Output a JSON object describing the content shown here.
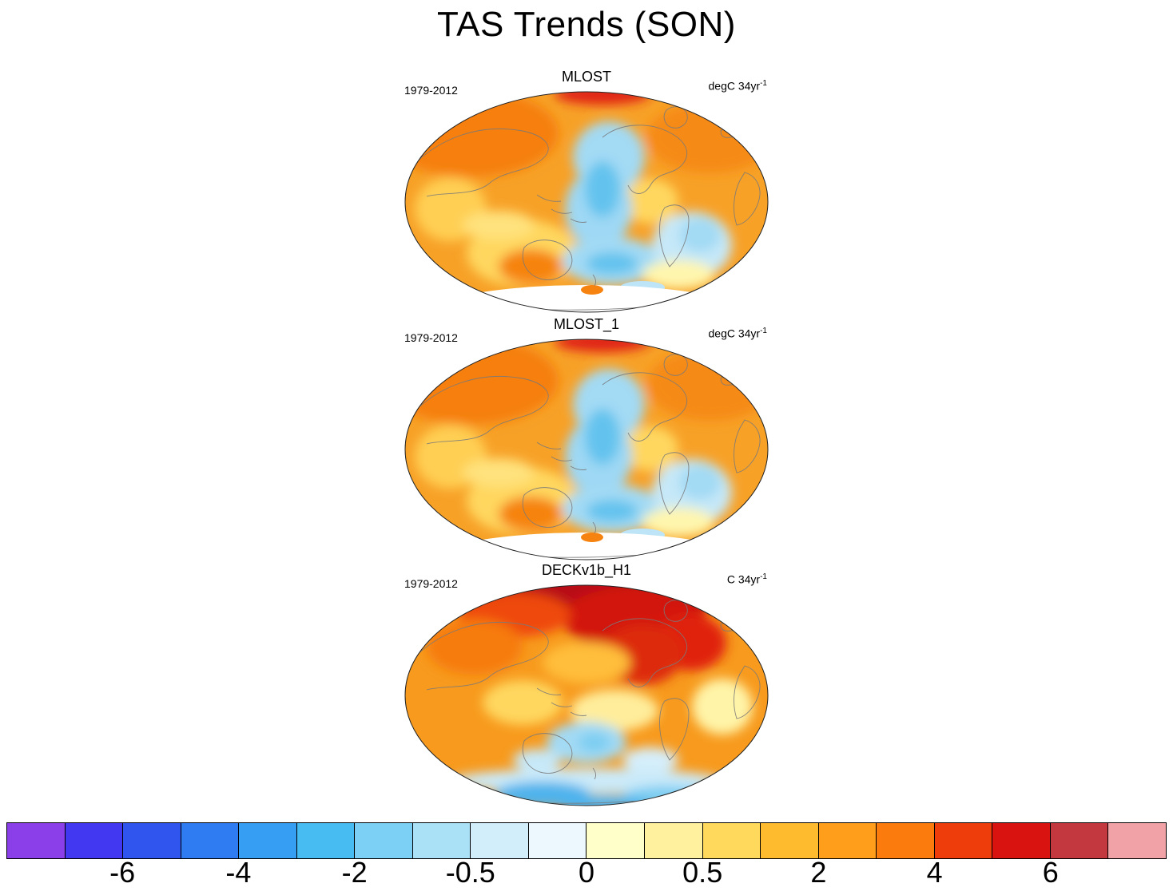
{
  "title": "TAS Trends (SON)",
  "panels": [
    {
      "title": "MLOST",
      "period": "1979-2012",
      "unit": "degC 34yr",
      "unit_exp": "-1"
    },
    {
      "title": "MLOST_1",
      "period": "1979-2012",
      "unit": "degC 34yr",
      "unit_exp": "-1"
    },
    {
      "title": "DECKv1b_H1",
      "period": "1979-2012",
      "unit": "C 34yr",
      "unit_exp": "-1"
    }
  ],
  "colorbar": {
    "tick_labels": [
      "-6",
      "-4",
      "-2",
      "-0.5",
      "0",
      "0.5",
      "2",
      "4",
      "6"
    ],
    "segments": [
      "#8B3FE8",
      "#4338F2",
      "#2F55EE",
      "#2F7BF2",
      "#379FF3",
      "#47BCF3",
      "#7CD0F5",
      "#ABE1F7",
      "#D3EEFB",
      "#ECF8FD",
      "#FFFFC9",
      "#FFF19E",
      "#FFD95C",
      "#FFBB2E",
      "#FF9E1B",
      "#FB7B0D",
      "#EE3D0B",
      "#D81310",
      "#C2383E",
      "#F1A2A6"
    ]
  },
  "chart_data": {
    "type": "heatmap",
    "title": "TAS Trends (SON)",
    "maps": [
      {
        "name": "MLOST",
        "period": "1979-2012",
        "units": "degC 34yr^-1",
        "projection": "Robinson-style global map",
        "description": "Mostly warm (orange) surface air temperature trends globally; cooling (light blue) wedge in the eastern tropical Pacific extending along the west coast of the Americas and into the Southern Ocean; pale/near-zero trends in the South Atlantic; Antarctica masked white with a small warm patch."
      },
      {
        "name": "MLOST_1",
        "period": "1979-2012",
        "units": "degC 34yr^-1",
        "projection": "Robinson-style global map",
        "description": "Pattern essentially identical to MLOST: broad warming with eastern Pacific cooling band and masked (white) Antarctica."
      },
      {
        "name": "DECKv1b_H1",
        "period": "1979-2012",
        "units": "C 34yr^-1",
        "projection": "Robinson-style global map",
        "description": "Stronger overall warming; dark red Arctic amplification across high northern latitudes (strongest over North America/Greenland sector); yellow near-neutral tropical patches; weak cooling (light blue) in the south-central Pacific and stronger blue cooling trends around Antarctica."
      }
    ],
    "colorbar": {
      "orientation": "horizontal",
      "tick_values": [
        -6,
        -4,
        -2,
        -0.5,
        0,
        0.5,
        2,
        4,
        6
      ],
      "n_segments": 20,
      "colors": [
        "#8B3FE8",
        "#4338F2",
        "#2F55EE",
        "#2F7BF2",
        "#379FF3",
        "#47BCF3",
        "#7CD0F5",
        "#ABE1F7",
        "#D3EEFB",
        "#ECF8FD",
        "#FFFFC9",
        "#FFF19E",
        "#FFD95C",
        "#FFBB2E",
        "#FF9E1B",
        "#FB7B0D",
        "#EE3D0B",
        "#D81310",
        "#C2383E",
        "#F1A2A6"
      ]
    }
  }
}
